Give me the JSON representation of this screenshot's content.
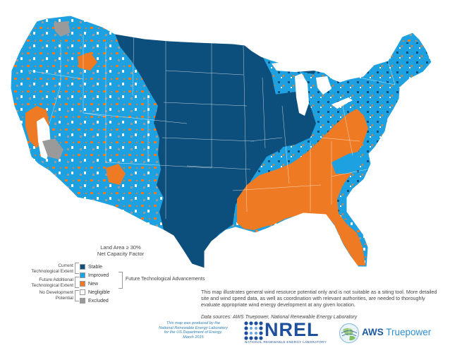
{
  "legend": {
    "title_line1": "Land Area ≥ 30%",
    "title_line2": "Net Capacity Factor",
    "items": [
      {
        "label": "Stable",
        "color": "#0d4f7c"
      },
      {
        "label": "Improved",
        "color": "#1ea1e0"
      },
      {
        "label": "New",
        "color": "#ee7a23"
      },
      {
        "label": "Negligible",
        "color": "#ffffff"
      },
      {
        "label": "Excluded",
        "color": "#9a9a9a"
      }
    ],
    "group_current": [
      "Current",
      "Technological Extent"
    ],
    "group_future_additional": [
      "Future Additional",
      "Technological Extent"
    ],
    "group_no_development": [
      "No Development",
      "Potential"
    ],
    "future_advancements": "Future Technological Advancements"
  },
  "disclaimer": "This map illustrates general wind resource potential only and is not suitable as a siting tool.  More detailed site and wind speed data, as well as coordination with relevant authorities, are needed to thoroughly evaluate appropriate wind energy development at any given location.",
  "data_sources": "Data sources: AWS Truepower, National Renewable Energy Laboratory",
  "produced_by": [
    "This map was produced by the",
    "National Renewable Energy Laboratory",
    "for the US Department of Energy.",
    "March 2015"
  ],
  "logos": {
    "nrel_word": "NREL",
    "nrel_sub": "NATIONAL RENEWABLE ENERGY LABORATORY",
    "aws_word": "AWS",
    "aws_tp": "Truepower"
  }
}
